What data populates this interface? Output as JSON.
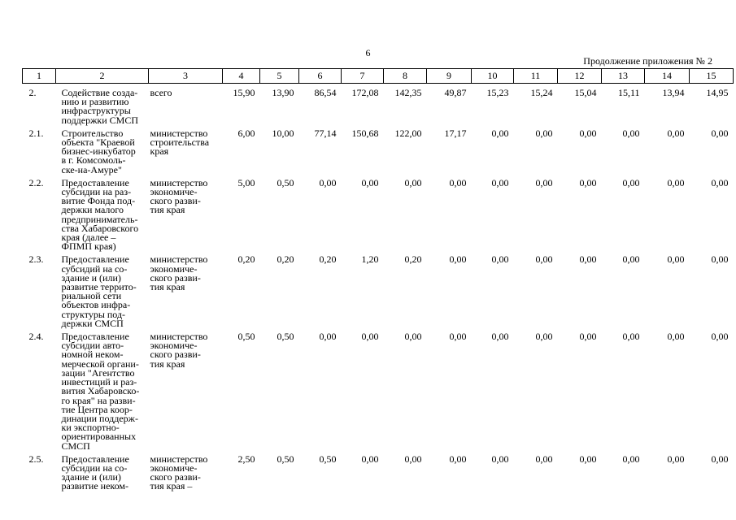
{
  "page": {
    "number": "6",
    "continuation": "Продолжение приложения № 2"
  },
  "table": {
    "column_numbers": [
      "1",
      "2",
      "3",
      "4",
      "5",
      "6",
      "7",
      "8",
      "9",
      "10",
      "11",
      "12",
      "13",
      "14",
      "15"
    ],
    "rows": [
      {
        "num": "2.",
        "name": "Содействие созда-\nнию и развитию\nинфраструктуры\nподдержки СМСП",
        "executor": "всего",
        "values": [
          "15,90",
          "13,90",
          "86,54",
          "172,08",
          "142,35",
          "49,87",
          "15,23",
          "15,24",
          "15,04",
          "15,11",
          "13,94",
          "14,95"
        ]
      },
      {
        "num": "2.1.",
        "name": "Строительство\nобъекта \"Краевой\nбизнес-инкубатор\nв г. Комсомоль-\nске-на-Амуре\"",
        "executor": "министерство\nстроительства\nкрая",
        "values": [
          "6,00",
          "10,00",
          "77,14",
          "150,68",
          "122,00",
          "17,17",
          "0,00",
          "0,00",
          "0,00",
          "0,00",
          "0,00",
          "0,00"
        ]
      },
      {
        "num": "2.2.",
        "name": "Предоставление\nсубсидии на раз-\nвитие Фонда под-\nдержки малого\nпредприниматель-\nства Хабаровского\nкрая (далее –\nФПМП края)",
        "executor": "министерство\nэкономиче-\nского разви-\nтия края",
        "values": [
          "5,00",
          "0,50",
          "0,00",
          "0,00",
          "0,00",
          "0,00",
          "0,00",
          "0,00",
          "0,00",
          "0,00",
          "0,00",
          "0,00"
        ]
      },
      {
        "num": "2.3.",
        "name": "Предоставление\nсубсидий на со-\nздание и (или)\nразвитие террито-\nриальной сети\nобъектов инфра-\nструктуры под-\nдержки СМСП",
        "executor": "министерство\nэкономиче-\nского разви-\nтия края",
        "values": [
          "0,20",
          "0,20",
          "0,20",
          "1,20",
          "0,20",
          "0,00",
          "0,00",
          "0,00",
          "0,00",
          "0,00",
          "0,00",
          "0,00"
        ]
      },
      {
        "num": "2.4.",
        "name": "Предоставление\nсубсидии авто-\nномной неком-\nмерческой органи-\nзации \"Агентство\nинвестиций и раз-\nвития Хабаровско-\nго края\" на разви-\nтие Центра коор-\nдинации поддерж-\nки экспортно-\nориентированных\nСМСП",
        "executor": "министерство\nэкономиче-\nского разви-\nтия края",
        "values": [
          "0,50",
          "0,50",
          "0,00",
          "0,00",
          "0,00",
          "0,00",
          "0,00",
          "0,00",
          "0,00",
          "0,00",
          "0,00",
          "0,00"
        ]
      },
      {
        "num": "2.5.",
        "name": "Предоставление\nсубсидии на со-\nздание и (или)\nразвитие неком-",
        "executor": "министерство\nэкономиче-\nского разви-\nтия края –",
        "values": [
          "2,50",
          "0,50",
          "0,50",
          "0,00",
          "0,00",
          "0,00",
          "0,00",
          "0,00",
          "0,00",
          "0,00",
          "0,00",
          "0,00"
        ]
      }
    ]
  }
}
